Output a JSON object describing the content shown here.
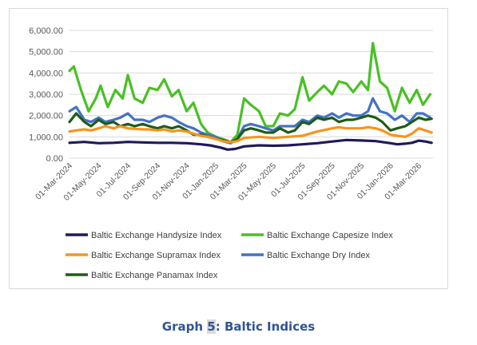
{
  "caption": {
    "prefix": "Graph ",
    "number": "5",
    "suffix": ": Baltic Indices"
  },
  "chart_data": {
    "type": "line",
    "ylim": [
      0,
      6000
    ],
    "ytick_values": [
      0,
      1000,
      2000,
      3000,
      4000,
      5000,
      6000
    ],
    "ytick_labels": [
      "0.00",
      "1,000.00",
      "2,000.00",
      "3,000.00",
      "4,000.00",
      "5,000.00",
      "6,000.00"
    ],
    "xlim": [
      "2024-03-01",
      "2026-03-31"
    ],
    "xtick_values": [
      "2024-03-01",
      "2024-05-01",
      "2024-07-01",
      "2024-09-01",
      "2024-11-01",
      "2025-01-01",
      "2025-03-01",
      "2025-05-01",
      "2025-07-01",
      "2025-09-01",
      "2025-11-01",
      "2026-01-01",
      "2026-03-01"
    ],
    "xtick_labels": [
      "01-Mar-2024",
      "01-May-2024",
      "01-Jul-2024",
      "01-Sep-2024",
      "01-Nov-2024",
      "01-Jan-2025",
      "01-Mar-2025",
      "01-May-2025",
      "01-Jul-2025",
      "01-Sep-2025",
      "01-Nov-2025",
      "01-Jan-2026",
      "01-Mar-2026"
    ],
    "gridlines": "horizontal",
    "legend_position": "bottom",
    "series": [
      {
        "name": "Baltic Exchange Capesize Index",
        "color": "#49c024",
        "x": [
          "2024-03-01",
          "2024-03-10",
          "2024-03-25",
          "2024-04-10",
          "2024-04-25",
          "2024-05-05",
          "2024-05-20",
          "2024-06-05",
          "2024-06-20",
          "2024-07-01",
          "2024-07-15",
          "2024-08-01",
          "2024-08-15",
          "2024-09-01",
          "2024-09-15",
          "2024-10-01",
          "2024-10-15",
          "2024-11-01",
          "2024-11-15",
          "2024-12-01",
          "2024-12-15",
          "2025-01-01",
          "2025-01-15",
          "2025-02-01",
          "2025-02-15",
          "2025-03-01",
          "2025-03-15",
          "2025-04-01",
          "2025-04-15",
          "2025-05-01",
          "2025-05-15",
          "2025-06-01",
          "2025-06-15",
          "2025-07-01",
          "2025-07-15",
          "2025-08-01",
          "2025-08-15",
          "2025-09-01",
          "2025-09-15",
          "2025-10-01",
          "2025-10-15",
          "2025-11-01",
          "2025-11-15",
          "2025-11-25",
          "2025-12-10",
          "2025-12-25",
          "2026-01-10",
          "2026-01-25",
          "2026-02-10",
          "2026-02-25",
          "2026-03-10",
          "2026-03-25"
        ],
        "y": [
          4100,
          4300,
          3200,
          2200,
          2800,
          3400,
          2400,
          3200,
          2800,
          3900,
          2800,
          2600,
          3300,
          3200,
          3700,
          2900,
          3200,
          2200,
          2600,
          1600,
          1200,
          1000,
          900,
          750,
          1100,
          2800,
          2500,
          2200,
          1500,
          1500,
          2100,
          2000,
          2300,
          3800,
          2700,
          3100,
          3400,
          3000,
          3600,
          3500,
          3100,
          3600,
          3200,
          5400,
          3600,
          3300,
          2200,
          3300,
          2600,
          3200,
          2500,
          3000
        ]
      },
      {
        "name": "Baltic Exchange Dry Index",
        "color": "#4472c4",
        "x": [
          "2024-03-01",
          "2024-03-15",
          "2024-04-01",
          "2024-04-15",
          "2024-05-01",
          "2024-05-15",
          "2024-06-01",
          "2024-06-15",
          "2024-07-01",
          "2024-07-15",
          "2024-08-01",
          "2024-08-15",
          "2024-09-01",
          "2024-09-15",
          "2024-10-01",
          "2024-10-15",
          "2024-11-01",
          "2024-11-15",
          "2024-12-01",
          "2024-12-15",
          "2025-01-01",
          "2025-01-15",
          "2025-02-01",
          "2025-02-15",
          "2025-03-01",
          "2025-03-15",
          "2025-04-01",
          "2025-04-15",
          "2025-05-01",
          "2025-05-15",
          "2025-06-01",
          "2025-06-15",
          "2025-07-01",
          "2025-07-15",
          "2025-08-01",
          "2025-08-15",
          "2025-09-01",
          "2025-09-15",
          "2025-10-01",
          "2025-10-15",
          "2025-11-01",
          "2025-11-15",
          "2025-11-25",
          "2025-12-10",
          "2025-12-25",
          "2026-01-10",
          "2026-01-25",
          "2026-02-10",
          "2026-02-25",
          "2026-03-10",
          "2026-03-25"
        ],
        "y": [
          2200,
          2400,
          1800,
          1700,
          1900,
          1700,
          1800,
          1900,
          2100,
          1800,
          1800,
          1700,
          1900,
          2000,
          1900,
          1700,
          1500,
          1400,
          1200,
          1100,
          1000,
          800,
          700,
          900,
          1500,
          1600,
          1500,
          1400,
          1300,
          1500,
          1500,
          1500,
          1800,
          1700,
          2000,
          1900,
          2100,
          1900,
          2100,
          2000,
          2000,
          2200,
          2800,
          2200,
          2100,
          1800,
          2000,
          1700,
          2100,
          2100,
          1900
        ]
      },
      {
        "name": "Baltic Exchange Panamax Index",
        "color": "#1e5c19",
        "x": [
          "2024-03-01",
          "2024-03-15",
          "2024-04-01",
          "2024-04-15",
          "2024-05-01",
          "2024-05-15",
          "2024-06-01",
          "2024-06-15",
          "2024-07-01",
          "2024-07-15",
          "2024-08-01",
          "2024-08-15",
          "2024-09-01",
          "2024-09-15",
          "2024-10-01",
          "2024-10-15",
          "2024-11-01",
          "2024-11-15",
          "2024-12-01",
          "2024-12-15",
          "2025-01-01",
          "2025-01-15",
          "2025-02-01",
          "2025-02-15",
          "2025-03-01",
          "2025-03-15",
          "2025-04-01",
          "2025-04-15",
          "2025-05-01",
          "2025-05-15",
          "2025-06-01",
          "2025-06-15",
          "2025-07-01",
          "2025-07-15",
          "2025-08-01",
          "2025-08-15",
          "2025-09-01",
          "2025-09-15",
          "2025-10-01",
          "2025-10-15",
          "2025-11-01",
          "2025-11-15",
          "2025-12-01",
          "2025-12-15",
          "2026-01-01",
          "2026-01-15",
          "2026-02-01",
          "2026-02-15",
          "2026-03-01",
          "2026-03-15",
          "2026-03-28"
        ],
        "y": [
          1700,
          2100,
          1700,
          1500,
          1800,
          1600,
          1700,
          1500,
          1600,
          1500,
          1600,
          1500,
          1400,
          1500,
          1400,
          1500,
          1300,
          1100,
          1100,
          1000,
          900,
          850,
          750,
          900,
          1300,
          1400,
          1300,
          1200,
          1200,
          1400,
          1200,
          1300,
          1700,
          1600,
          1900,
          1800,
          1900,
          1700,
          1800,
          1800,
          1900,
          2000,
          1900,
          1700,
          1300,
          1400,
          1500,
          1700,
          1900,
          1800,
          1850
        ]
      },
      {
        "name": "Baltic Exchange Supramax Index",
        "color": "#f7941d",
        "x": [
          "2024-03-01",
          "2024-03-15",
          "2024-04-01",
          "2024-04-15",
          "2024-05-01",
          "2024-05-15",
          "2024-06-01",
          "2024-06-15",
          "2024-07-01",
          "2024-08-01",
          "2024-08-15",
          "2024-09-01",
          "2024-09-15",
          "2024-10-01",
          "2024-10-15",
          "2024-11-01",
          "2024-11-15",
          "2024-12-01",
          "2024-12-15",
          "2025-01-01",
          "2025-01-15",
          "2025-02-01",
          "2025-02-15",
          "2025-03-01",
          "2025-04-01",
          "2025-05-01",
          "2025-06-01",
          "2025-07-01",
          "2025-08-01",
          "2025-09-01",
          "2025-09-15",
          "2025-10-01",
          "2025-10-15",
          "2025-11-01",
          "2025-11-15",
          "2025-12-01",
          "2025-12-15",
          "2026-01-01",
          "2026-01-15",
          "2026-02-01",
          "2026-02-15",
          "2026-03-01",
          "2026-03-15",
          "2026-03-28"
        ],
        "y": [
          1250,
          1300,
          1350,
          1300,
          1400,
          1500,
          1400,
          1500,
          1400,
          1350,
          1350,
          1300,
          1350,
          1250,
          1300,
          1250,
          1150,
          1050,
          1000,
          900,
          800,
          750,
          800,
          950,
          1000,
          950,
          1000,
          1050,
          1250,
          1400,
          1450,
          1400,
          1400,
          1400,
          1450,
          1400,
          1300,
          1100,
          1050,
          1000,
          1150,
          1400,
          1300,
          1200
        ]
      },
      {
        "name": "Baltic Exchange Handysize Index",
        "color": "#1f1a5a",
        "x": [
          "2024-03-01",
          "2024-04-01",
          "2024-05-01",
          "2024-06-01",
          "2024-07-01",
          "2024-08-01",
          "2024-09-01",
          "2024-10-01",
          "2024-11-01",
          "2024-12-01",
          "2024-12-20",
          "2025-01-10",
          "2025-01-25",
          "2025-02-10",
          "2025-03-01",
          "2025-04-01",
          "2025-05-01",
          "2025-06-01",
          "2025-07-01",
          "2025-08-01",
          "2025-09-01",
          "2025-10-01",
          "2025-11-01",
          "2025-12-01",
          "2026-01-01",
          "2026-01-15",
          "2026-02-01",
          "2026-02-15",
          "2026-03-01",
          "2026-03-15",
          "2026-03-28"
        ],
        "y": [
          720,
          760,
          700,
          720,
          760,
          740,
          720,
          720,
          700,
          650,
          600,
          500,
          400,
          430,
          550,
          600,
          580,
          600,
          650,
          700,
          780,
          850,
          830,
          800,
          700,
          650,
          680,
          720,
          820,
          780,
          720
        ]
      }
    ]
  },
  "legend": {
    "items": [
      {
        "label": "Baltic Exchange Handysize Index",
        "color": "#1f1a5a"
      },
      {
        "label": "Baltic Exchange Capesize Index",
        "color": "#49c024"
      },
      {
        "label": "Baltic Exchange Supramax Index",
        "color": "#f7941d"
      },
      {
        "label": "Baltic Exchange Dry Index",
        "color": "#4472c4"
      },
      {
        "label": "Baltic Exchange Panamax Index",
        "color": "#1e5c19"
      }
    ]
  }
}
